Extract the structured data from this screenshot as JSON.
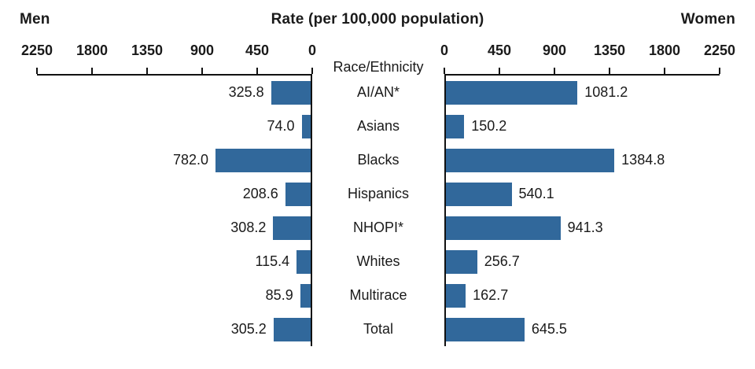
{
  "chart_data": {
    "type": "bar",
    "orientation": "bilateral-horizontal",
    "title": "Rate (per 100,000 population)",
    "left_label": "Men",
    "right_label": "Women",
    "center_header": "Race/Ethnicity",
    "axis_max": 2250,
    "axis_ticks_left": [
      "2250",
      "1800",
      "1350",
      "900",
      "450",
      "0"
    ],
    "axis_ticks_right": [
      "0",
      "450",
      "900",
      "1350",
      "1800",
      "2250"
    ],
    "categories": [
      "AI/AN*",
      "Asians",
      "Blacks",
      "Hispanics",
      "NHOPI*",
      "Whites",
      "Multirace",
      "Total"
    ],
    "series": [
      {
        "name": "Men",
        "values": [
          325.8,
          74.0,
          782.0,
          208.6,
          308.2,
          115.4,
          85.9,
          305.2
        ]
      },
      {
        "name": "Women",
        "values": [
          1081.2,
          150.2,
          1384.8,
          540.1,
          941.3,
          256.7,
          162.7,
          645.5
        ]
      }
    ],
    "bar_color": "#31689B",
    "axis_color": "#111111",
    "grid": false,
    "legend": "none"
  }
}
